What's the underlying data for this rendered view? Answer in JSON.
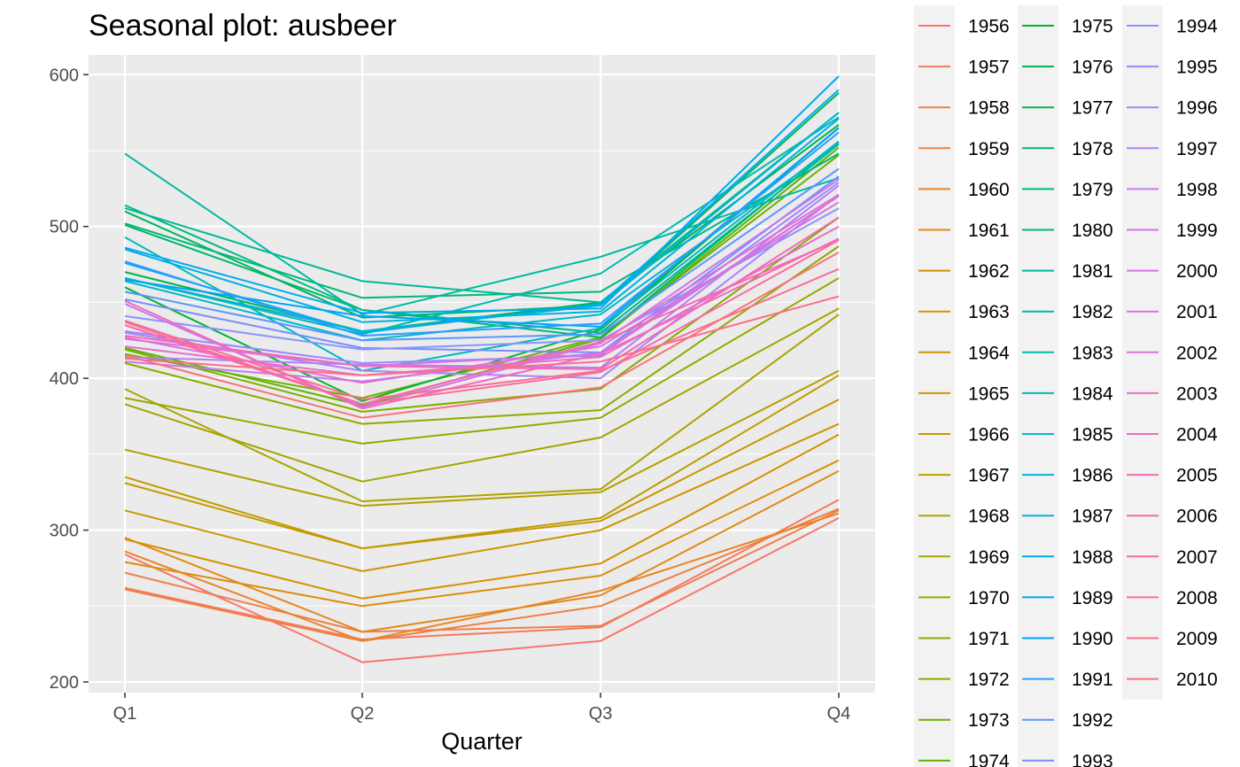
{
  "chart_data": {
    "type": "line",
    "title": "Seasonal plot: ausbeer",
    "xlabel": "Quarter",
    "ylabel": "",
    "categories": [
      "Q1",
      "Q2",
      "Q3",
      "Q4"
    ],
    "ylim": [
      193,
      613
    ],
    "yticks": [
      200,
      300,
      400,
      500,
      600
    ],
    "grid": true,
    "legend_position": "right",
    "series": [
      {
        "name": "1956",
        "values": [
          284,
          213,
          227,
          308
        ],
        "color": "#f8766d"
      },
      {
        "name": "1957",
        "values": [
          262,
          228,
          236,
          320
        ],
        "color": "#f57a5e"
      },
      {
        "name": "1958",
        "values": [
          272,
          233,
          237,
          313
        ],
        "color": "#f17e4f"
      },
      {
        "name": "1959",
        "values": [
          261,
          227,
          250,
          314
        ],
        "color": "#ed8140"
      },
      {
        "name": "1960",
        "values": [
          286,
          227,
          260,
          311
        ],
        "color": "#e88526"
      },
      {
        "name": "1961",
        "values": [
          295,
          233,
          257,
          339
        ],
        "color": "#e2891a"
      },
      {
        "name": "1962",
        "values": [
          279,
          250,
          270,
          346
        ],
        "color": "#dc8d0c"
      },
      {
        "name": "1963",
        "values": [
          294,
          255,
          278,
          363
        ],
        "color": "#d59100"
      },
      {
        "name": "1964",
        "values": [
          313,
          273,
          300,
          370
        ],
        "color": "#ce9500"
      },
      {
        "name": "1965",
        "values": [
          331,
          288,
          306,
          386
        ],
        "color": "#c79800"
      },
      {
        "name": "1966",
        "values": [
          335,
          288,
          308,
          402
        ],
        "color": "#bf9c00"
      },
      {
        "name": "1967",
        "values": [
          353,
          316,
          325,
          405
        ],
        "color": "#b69f00"
      },
      {
        "name": "1968",
        "values": [
          393,
          319,
          327,
          442
        ],
        "color": "#ada300"
      },
      {
        "name": "1969",
        "values": [
          383,
          332,
          361,
          446
        ],
        "color": "#a3a500"
      },
      {
        "name": "1970",
        "values": [
          387,
          357,
          374,
          466
        ],
        "color": "#98a800"
      },
      {
        "name": "1971",
        "values": [
          410,
          370,
          379,
          487
        ],
        "color": "#8cab00"
      },
      {
        "name": "1972",
        "values": [
          419,
          378,
          393,
          506
        ],
        "color": "#7fae00"
      },
      {
        "name": "1973",
        "values": [
          416,
          387,
          427,
          547
        ],
        "color": "#70b000"
      },
      {
        "name": "1974",
        "values": [
          420,
          382,
          426,
          552
        ],
        "color": "#5eb300"
      },
      {
        "name": "1975",
        "values": [
          460,
          385,
          432,
          565
        ],
        "color": "#00b433"
      },
      {
        "name": "1976",
        "values": [
          470,
          431,
          450,
          567
        ],
        "color": "#00b548"
      },
      {
        "name": "1977",
        "values": [
          510,
          440,
          448,
          588
        ],
        "color": "#00b65a"
      },
      {
        "name": "1978",
        "values": [
          501,
          445,
          427,
          555
        ],
        "color": "#00b76a"
      },
      {
        "name": "1979",
        "values": [
          502,
          453,
          457,
          548
        ],
        "color": "#00b879"
      },
      {
        "name": "1980",
        "values": [
          514,
          445,
          430,
          554
        ],
        "color": "#00b987"
      },
      {
        "name": "1981",
        "values": [
          512,
          464,
          450,
          575
        ],
        "color": "#00ba95"
      },
      {
        "name": "1982",
        "values": [
          548,
          442,
          480,
          532
        ],
        "color": "#00baa3"
      },
      {
        "name": "1983",
        "values": [
          466,
          429,
          469,
          572
        ],
        "color": "#00bab0"
      },
      {
        "name": "1984",
        "values": [
          493,
          405,
          433,
          556
        ],
        "color": "#00b9bd"
      },
      {
        "name": "1985",
        "values": [
          464,
          425,
          442,
          554
        ],
        "color": "#00b8c9"
      },
      {
        "name": "1986",
        "values": [
          466,
          431,
          448,
          575
        ],
        "color": "#00b5d5"
      },
      {
        "name": "1987",
        "values": [
          485,
          437,
          444,
          571
        ],
        "color": "#00b2e0"
      },
      {
        "name": "1988",
        "values": [
          476,
          430,
          449,
          590
        ],
        "color": "#00aeea"
      },
      {
        "name": "1989",
        "values": [
          486,
          443,
          446,
          599
        ],
        "color": "#00a9f3"
      },
      {
        "name": "1990",
        "values": [
          465,
          441,
          434,
          565
        ],
        "color": "#00a4fa"
      },
      {
        "name": "1991",
        "values": [
          477,
          428,
          436,
          562
        ],
        "color": "#2c9dff"
      },
      {
        "name": "1992",
        "values": [
          457,
          425,
          429,
          538
        ],
        "color": "#5a96ff"
      },
      {
        "name": "1993",
        "values": [
          452,
          420,
          417,
          533
        ],
        "color": "#738ffd"
      },
      {
        "name": "1994",
        "values": [
          441,
          419,
          425,
          512
        ],
        "color": "#8b93ff"
      },
      {
        "name": "1995",
        "values": [
          431,
          410,
          415,
          529
        ],
        "color": "#9a87ff"
      },
      {
        "name": "1996",
        "values": [
          430,
          405,
          400,
          521
        ],
        "color": "#a883fb"
      },
      {
        "name": "1997",
        "values": [
          414,
          409,
          407,
          527
        ],
        "color": "#b57ff6"
      },
      {
        "name": "1998",
        "values": [
          411,
          398,
          417,
          520
        ],
        "color": "#c17bf0"
      },
      {
        "name": "1999",
        "values": [
          449,
          381,
          423,
          531
        ],
        "color": "#cb77ea"
      },
      {
        "name": "2000",
        "values": [
          426,
          408,
          416,
          520
        ],
        "color": "#d574e3"
      },
      {
        "name": "2001",
        "values": [
          427,
          397,
          421,
          516
        ],
        "color": "#dd71db"
      },
      {
        "name": "2002",
        "values": [
          435,
          383,
          424,
          521
        ],
        "color": "#e46fd3"
      },
      {
        "name": "2003",
        "values": [
          421,
          402,
          414,
          500
        ],
        "color": "#ea6dca"
      },
      {
        "name": "2004",
        "values": [
          451,
          380,
          416,
          492
        ],
        "color": "#ef6cc0"
      },
      {
        "name": "2005",
        "values": [
          428,
          408,
          406,
          506
        ],
        "color": "#f36bb6"
      },
      {
        "name": "2006",
        "values": [
          435,
          383,
          424,
          491
        ],
        "color": "#f76bab"
      },
      {
        "name": "2007",
        "values": [
          437,
          383,
          404,
          491
        ],
        "color": "#f96ca0"
      },
      {
        "name": "2008",
        "values": [
          438,
          386,
          405,
          472
        ],
        "color": "#fb6d95"
      },
      {
        "name": "2009",
        "values": [
          413,
          402,
          411,
          454
        ],
        "color": "#fb6f89"
      },
      {
        "name": "2010",
        "values": [
          415,
          374,
          394,
          483
        ],
        "color": "#fa727c"
      }
    ]
  }
}
